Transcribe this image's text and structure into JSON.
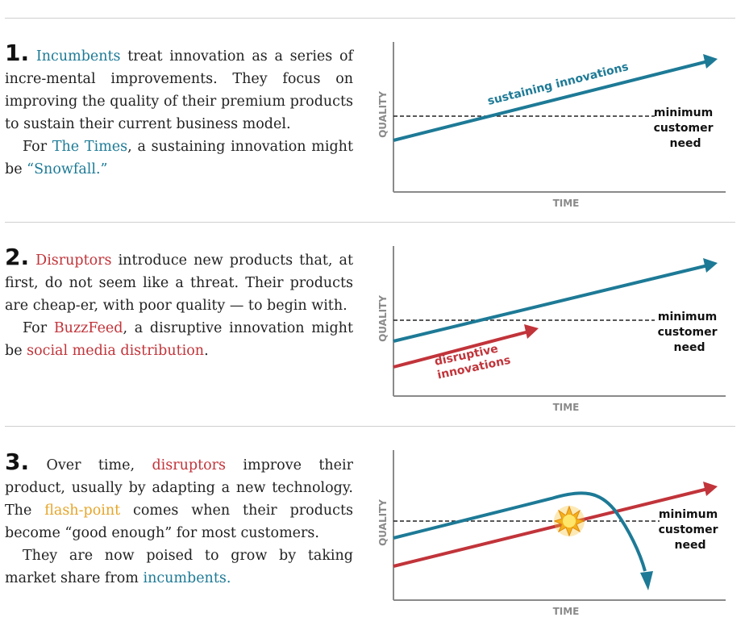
{
  "colors": {
    "teal": "#1d7a96",
    "red": "#c1343a",
    "gold": "#e6a52a"
  },
  "panels": [
    {
      "number": "1.",
      "paragraph1": {
        "t1": "Incumbents",
        "t2": " treat innovation as a series of incre-mental improvements. They focus on improving the quality of their premium products to sustain their current business model."
      },
      "paragraph2": {
        "t1": "For ",
        "t2": "The Times",
        "t3": ", a sustaining innovation might be ",
        "t4": "“Snowfall.”"
      },
      "chart": {
        "y_label": "QUALITY",
        "x_label": "TIME",
        "need_label": [
          "minimum",
          "customer",
          "need"
        ],
        "teal_label": "sustaining innovations"
      }
    },
    {
      "number": "2.",
      "paragraph1": {
        "t1": "Disruptors",
        "t2": " introduce new products that, at first, do not seem like a threat. Their products are cheap-er, with poor quality — to begin with."
      },
      "paragraph2": {
        "t1": "For ",
        "t2": "BuzzFeed",
        "t3": ", a disruptive innovation might be ",
        "t4": "social media distribution",
        "t5": "."
      },
      "chart": {
        "y_label": "QUALITY",
        "x_label": "TIME",
        "need_label": [
          "minimum",
          "customer",
          "need"
        ],
        "red_label": [
          "disruptive",
          "innovations"
        ]
      }
    },
    {
      "number": "3.",
      "paragraph1": {
        "t1": " Over time, ",
        "t2": "disruptors",
        "t3": " improve their product, usually by adapting a new technology. The ",
        "t4": "flash-point",
        "t5": " comes when their products become “good enough” for most customers."
      },
      "paragraph2": {
        "t1": "They are now poised to grow by taking market share from ",
        "t2": "incumbents."
      },
      "chart": {
        "y_label": "QUALITY",
        "x_label": "TIME",
        "need_label": [
          "minimum",
          "customer",
          "need"
        ]
      }
    }
  ]
}
